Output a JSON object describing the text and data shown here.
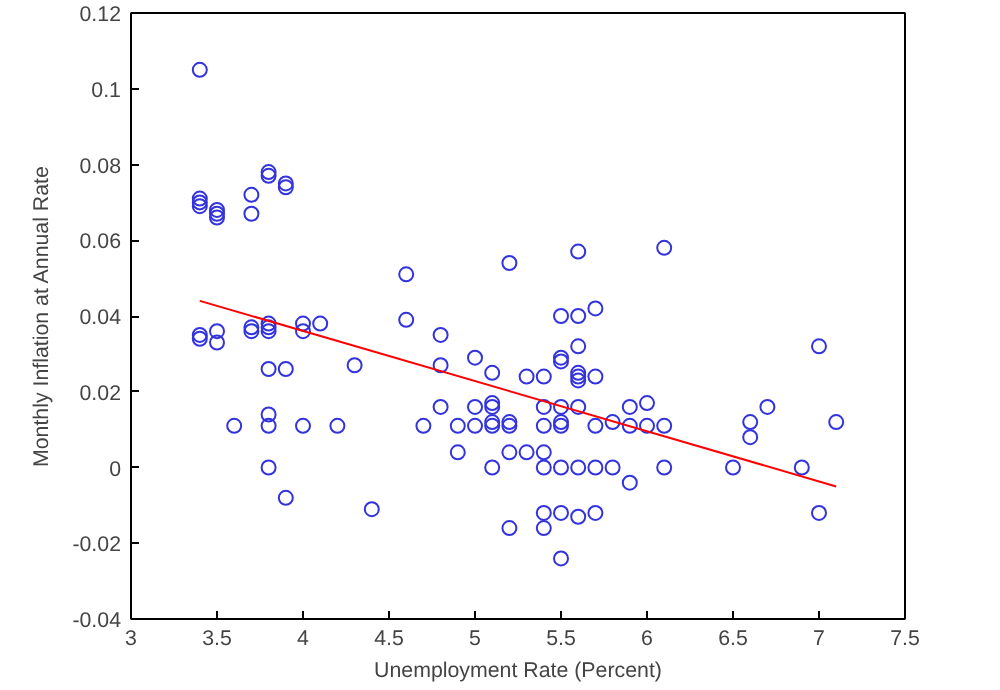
{
  "chart_data": {
    "type": "scatter",
    "xlabel": "Unemployment Rate (Percent)",
    "ylabel": "Monthly Inflation at Annual Rate",
    "xlim": [
      3,
      7.5
    ],
    "xticks": [
      3,
      3.5,
      4,
      4.5,
      5,
      5.5,
      6,
      6.5,
      7,
      7.5
    ],
    "ylim": [
      -0.04,
      0.12
    ],
    "yticks": [
      -0.04,
      -0.02,
      0,
      0.02,
      0.04,
      0.06,
      0.08,
      0.1,
      0.12
    ],
    "grid": false,
    "series": [
      {
        "marker": "circle",
        "color": "#3333dd",
        "x": [
          3.4,
          3.4,
          3.4,
          3.4,
          3.4,
          3.4,
          3.5,
          3.5,
          3.5,
          3.5,
          3.5,
          3.6,
          3.7,
          3.7,
          3.7,
          3.7,
          3.8,
          3.8,
          3.8,
          3.8,
          3.8,
          3.8,
          3.8,
          3.8,
          3.8,
          3.9,
          3.9,
          3.9,
          3.9,
          4.0,
          4.0,
          4.0,
          4.1,
          4.2,
          4.3,
          4.4,
          4.6,
          4.6,
          4.7,
          4.8,
          4.8,
          4.8,
          4.9,
          4.9,
          5.0,
          5.0,
          5.0,
          5.1,
          5.1,
          5.1,
          5.1,
          5.1,
          5.1,
          5.2,
          5.2,
          5.2,
          5.2,
          5.2,
          5.3,
          5.3,
          5.4,
          5.4,
          5.4,
          5.4,
          5.4,
          5.4,
          5.4,
          5.5,
          5.5,
          5.5,
          5.5,
          5.5,
          5.5,
          5.5,
          5.5,
          5.5,
          5.6,
          5.6,
          5.6,
          5.6,
          5.6,
          5.6,
          5.6,
          5.6,
          5.6,
          5.7,
          5.7,
          5.7,
          5.7,
          5.7,
          5.8,
          5.8,
          5.9,
          5.9,
          5.9,
          6.0,
          6.0,
          6.1,
          6.1,
          6.1,
          6.5,
          6.6,
          6.6,
          6.7,
          6.9,
          7.0,
          7.0,
          7.1
        ],
        "values": [
          0.105,
          0.071,
          0.069,
          0.035,
          0.034,
          0.07,
          0.068,
          0.066,
          0.036,
          0.033,
          0.067,
          0.011,
          0.072,
          0.067,
          0.037,
          0.036,
          0.078,
          0.077,
          0.038,
          0.037,
          0.036,
          0.026,
          0.014,
          0.011,
          0.0,
          0.075,
          0.074,
          0.026,
          -0.008,
          0.038,
          0.036,
          0.011,
          0.038,
          0.011,
          0.027,
          -0.011,
          0.051,
          0.039,
          0.011,
          0.035,
          0.027,
          0.016,
          0.011,
          0.004,
          0.029,
          0.016,
          0.011,
          0.025,
          0.017,
          0.016,
          0.012,
          0.011,
          0.0,
          0.054,
          0.012,
          0.011,
          0.004,
          -0.016,
          0.024,
          0.004,
          0.024,
          0.016,
          0.011,
          0.004,
          0.0,
          -0.012,
          -0.016,
          0.04,
          0.029,
          0.028,
          0.016,
          0.012,
          0.011,
          0.0,
          -0.012,
          -0.024,
          0.057,
          0.04,
          0.032,
          0.025,
          0.024,
          0.023,
          0.016,
          0.0,
          -0.013,
          0.042,
          0.024,
          0.011,
          0.0,
          -0.012,
          0.012,
          0.0,
          0.016,
          0.011,
          -0.004,
          0.017,
          0.011,
          0.058,
          0.011,
          0.0,
          0.0,
          0.012,
          0.008,
          0.016,
          0.0,
          0.032,
          -0.012,
          0.012
        ]
      },
      {
        "type": "line",
        "color": "#ff0000",
        "line_style": "solid",
        "x": [
          3.4,
          7.1
        ],
        "values": [
          0.044,
          -0.005
        ]
      }
    ]
  }
}
